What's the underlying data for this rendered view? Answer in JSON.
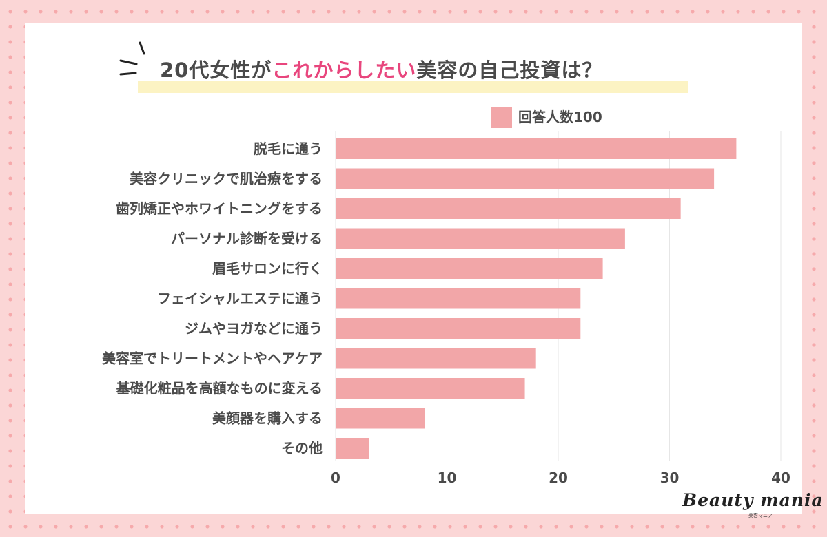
{
  "title": {
    "prefix": "20代女性が",
    "highlight": "これからしたい",
    "suffix": "美容の自己投資は？"
  },
  "chart_data": {
    "type": "bar",
    "orientation": "horizontal",
    "legend": [
      "回答人数100"
    ],
    "categories": [
      "脱毛に通う",
      "美容クリニックで肌治療をする",
      "歯列矯正やホワイトニングをする",
      "パーソナル診断を受ける",
      "眉毛サロンに行く",
      "フェイシャルエステに通う",
      "ジムやヨガなどに通う",
      "美容室でトリートメントやヘアケア",
      "基礎化粧品を高額なものに変える",
      "美顔器を購入する",
      "その他"
    ],
    "values": [
      36,
      34,
      31,
      26,
      24,
      22,
      22,
      18,
      17,
      8,
      3
    ],
    "xlim": [
      0,
      40
    ],
    "xticks": [
      0,
      10,
      20,
      30,
      40
    ],
    "grid": true
  },
  "colors": {
    "bar": "#f2a6a8",
    "highlight_text": "#e8467d",
    "text": "#4a4a4a",
    "title_underline": "#fcf3c3",
    "grid": "#e6e6e6"
  },
  "logo": {
    "name": "Beauty mania",
    "sub": "美容マニア"
  }
}
